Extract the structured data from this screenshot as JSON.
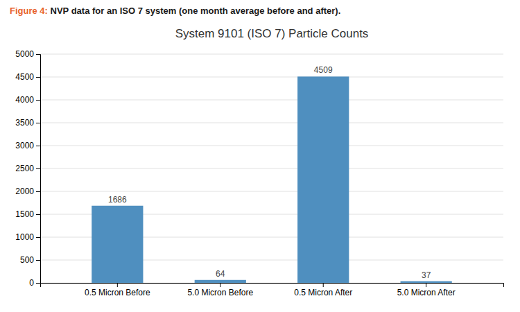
{
  "chart_data": {
    "type": "bar",
    "title": "System 9101 (ISO 7) Particle Counts",
    "annotations": [
      {
        "text": "Figure 4:",
        "color": "#e8622a"
      },
      {
        "text": " NVP data for an ISO 7 system (one month average before and after).",
        "color": "#1a1a1a"
      }
    ],
    "categories": [
      "0.5 Micron Before",
      "5.0 Micron Before",
      "0.5 Micron After",
      "5.0 Micron After"
    ],
    "values": [
      1686,
      64,
      4509,
      37
    ],
    "color": "#4f8fbf",
    "ylim": [
      0,
      5000
    ],
    "yticks": [
      0,
      500,
      1000,
      1500,
      2000,
      2500,
      3000,
      3500,
      4000,
      4500,
      5000
    ],
    "grid": true,
    "data_labels": true
  }
}
